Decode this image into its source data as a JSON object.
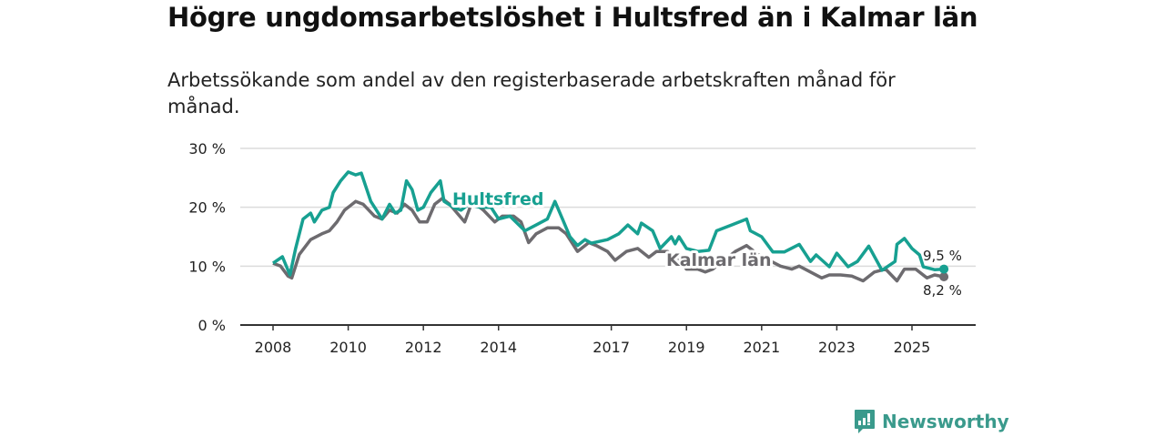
{
  "header": {
    "title": "Högre ungdomsarbetslöshet i Hultsfred än i Kalmar län",
    "subtitle": "Arbetssökande som andel av den registerbaserade arbetskraften månad för månad."
  },
  "brand": {
    "name": "Newsworthy"
  },
  "chart_data": {
    "type": "line",
    "title": "Högre ungdomsarbetslöshet i Hultsfred än i Kalmar län",
    "xlabel": "",
    "ylabel": "",
    "xlim": [
      2007.9,
      2026.7
    ],
    "ylim": [
      0,
      30
    ],
    "yticks": [
      0,
      10,
      20,
      30
    ],
    "ytick_labels": [
      "0 %",
      "10 %",
      "20 %",
      "30 %"
    ],
    "xticks": [
      2008,
      2010,
      2012,
      2014,
      2017,
      2019,
      2021,
      2023,
      2025
    ],
    "xtick_labels": [
      "2008",
      "2010",
      "2012",
      "2014",
      "2017",
      "2019",
      "2021",
      "2023",
      "2025"
    ],
    "grid": true,
    "series": [
      {
        "name": "Hultsfred",
        "color": "#17a091",
        "end_label": "9,5 %",
        "points": [
          [
            2008.0,
            10.5
          ],
          [
            2008.25,
            11.6
          ],
          [
            2008.45,
            8.5
          ],
          [
            2008.6,
            13
          ],
          [
            2008.8,
            18
          ],
          [
            2009.0,
            19
          ],
          [
            2009.1,
            17.5
          ],
          [
            2009.3,
            19.5
          ],
          [
            2009.5,
            20
          ],
          [
            2009.6,
            22.5
          ],
          [
            2009.8,
            24.5
          ],
          [
            2010.0,
            26
          ],
          [
            2010.2,
            25.5
          ],
          [
            2010.35,
            25.8
          ],
          [
            2010.6,
            21
          ],
          [
            2010.9,
            18
          ],
          [
            2011.1,
            20.5
          ],
          [
            2011.25,
            19
          ],
          [
            2011.4,
            19.5
          ],
          [
            2011.55,
            24.5
          ],
          [
            2011.7,
            23
          ],
          [
            2011.85,
            19.5
          ],
          [
            2012.0,
            20
          ],
          [
            2012.2,
            22.5
          ],
          [
            2012.45,
            24.5
          ],
          [
            2012.55,
            21
          ],
          [
            2012.8,
            20
          ],
          [
            2013.0,
            19.5
          ],
          [
            2013.2,
            20.5
          ],
          [
            2013.5,
            20
          ],
          [
            2013.8,
            20
          ],
          [
            2014.0,
            18
          ],
          [
            2014.3,
            18.5
          ],
          [
            2014.7,
            16
          ],
          [
            2015.0,
            17
          ],
          [
            2015.3,
            18
          ],
          [
            2015.5,
            21
          ],
          [
            2015.7,
            18
          ],
          [
            2015.9,
            15
          ],
          [
            2016.1,
            13.5
          ],
          [
            2016.3,
            14.5
          ],
          [
            2016.47,
            13.9
          ],
          [
            2016.9,
            14.5
          ],
          [
            2017.2,
            15.5
          ],
          [
            2017.44,
            17
          ],
          [
            2017.7,
            15.5
          ],
          [
            2017.8,
            17.3
          ],
          [
            2018.1,
            16
          ],
          [
            2018.3,
            13
          ],
          [
            2018.6,
            15
          ],
          [
            2018.7,
            13.8
          ],
          [
            2018.8,
            15
          ],
          [
            2019.0,
            13
          ],
          [
            2019.3,
            12.5
          ],
          [
            2019.6,
            12.7
          ],
          [
            2019.8,
            16
          ],
          [
            2020.2,
            17
          ],
          [
            2020.6,
            18
          ],
          [
            2020.7,
            16
          ],
          [
            2021.0,
            15
          ],
          [
            2021.3,
            12.4
          ],
          [
            2021.6,
            12.4
          ],
          [
            2022.0,
            13.7
          ],
          [
            2022.3,
            10.8
          ],
          [
            2022.45,
            11.9
          ],
          [
            2022.8,
            9.9
          ],
          [
            2023.0,
            12.2
          ],
          [
            2023.3,
            9.9
          ],
          [
            2023.55,
            10.8
          ],
          [
            2023.85,
            13.4
          ],
          [
            2024.2,
            9.3
          ],
          [
            2024.55,
            10.8
          ],
          [
            2024.6,
            13.7
          ],
          [
            2024.8,
            14.7
          ],
          [
            2025.0,
            13
          ],
          [
            2025.2,
            11.9
          ],
          [
            2025.3,
            9.9
          ],
          [
            2025.6,
            9.4
          ],
          [
            2025.85,
            9.5
          ]
        ]
      },
      {
        "name": "Kalmar län",
        "color": "#6d6b6f",
        "end_label": "8,2 %",
        "points": [
          [
            2008.0,
            10.5
          ],
          [
            2008.2,
            10
          ],
          [
            2008.4,
            8.3
          ],
          [
            2008.5,
            8
          ],
          [
            2008.7,
            12
          ],
          [
            2009.0,
            14.5
          ],
          [
            2009.3,
            15.5
          ],
          [
            2009.5,
            16
          ],
          [
            2009.7,
            17.5
          ],
          [
            2009.9,
            19.5
          ],
          [
            2010.2,
            21
          ],
          [
            2010.4,
            20.5
          ],
          [
            2010.7,
            18.5
          ],
          [
            2010.9,
            18
          ],
          [
            2011.1,
            19.5
          ],
          [
            2011.3,
            19
          ],
          [
            2011.5,
            20.5
          ],
          [
            2011.7,
            19.5
          ],
          [
            2011.9,
            17.5
          ],
          [
            2012.1,
            17.5
          ],
          [
            2012.3,
            20.5
          ],
          [
            2012.5,
            21.5
          ],
          [
            2012.7,
            20.5
          ],
          [
            2012.9,
            19
          ],
          [
            2013.1,
            17.5
          ],
          [
            2013.3,
            21
          ],
          [
            2013.6,
            19.5
          ],
          [
            2013.9,
            17.5
          ],
          [
            2014.1,
            18.5
          ],
          [
            2014.4,
            18.5
          ],
          [
            2014.6,
            17.5
          ],
          [
            2014.8,
            14
          ],
          [
            2015.0,
            15.5
          ],
          [
            2015.3,
            16.5
          ],
          [
            2015.6,
            16.5
          ],
          [
            2015.8,
            15.5
          ],
          [
            2016.1,
            12.5
          ],
          [
            2016.4,
            14
          ],
          [
            2016.6,
            13.5
          ],
          [
            2016.9,
            12.5
          ],
          [
            2017.1,
            11
          ],
          [
            2017.4,
            12.5
          ],
          [
            2017.7,
            13
          ],
          [
            2018.0,
            11.5
          ],
          [
            2018.2,
            12.5
          ],
          [
            2018.5,
            12.5
          ],
          [
            2018.8,
            11
          ],
          [
            2019.0,
            9.5
          ],
          [
            2019.3,
            9.5
          ],
          [
            2019.5,
            9
          ],
          [
            2019.7,
            9.5
          ],
          [
            2020.0,
            11
          ],
          [
            2020.3,
            12.5
          ],
          [
            2020.6,
            13.5
          ],
          [
            2020.9,
            12
          ],
          [
            2021.2,
            11
          ],
          [
            2021.5,
            10
          ],
          [
            2021.8,
            9.5
          ],
          [
            2022.0,
            10
          ],
          [
            2022.3,
            9
          ],
          [
            2022.6,
            8
          ],
          [
            2022.8,
            8.5
          ],
          [
            2023.1,
            8.5
          ],
          [
            2023.4,
            8.3
          ],
          [
            2023.7,
            7.5
          ],
          [
            2024.0,
            9
          ],
          [
            2024.3,
            9.5
          ],
          [
            2024.6,
            7.5
          ],
          [
            2024.8,
            9.5
          ],
          [
            2025.1,
            9.5
          ],
          [
            2025.4,
            8
          ],
          [
            2025.6,
            8.5
          ],
          [
            2025.85,
            8.2
          ]
        ]
      }
    ]
  }
}
